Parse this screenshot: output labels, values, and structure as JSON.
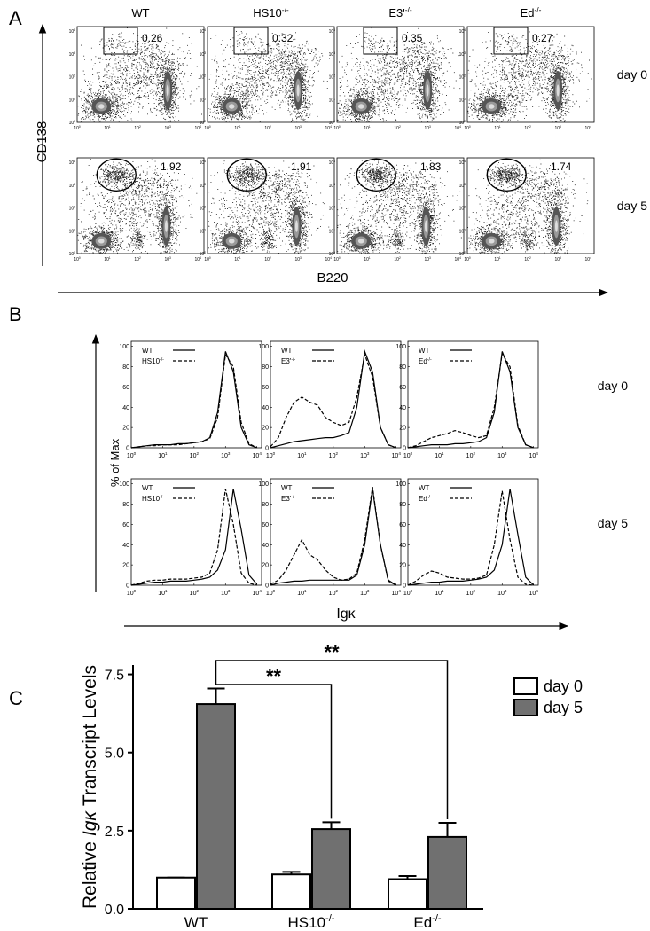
{
  "chart_data": [
    {
      "type": "flow",
      "letter": "A",
      "ylabel": "CD138",
      "xlabel": "B220",
      "columns": [
        {
          "label": "WT"
        },
        {
          "label": "HS10",
          "sup": "-/-"
        },
        {
          "label": "E3'",
          "sup": "-/-"
        },
        {
          "label": "Ed",
          "sup": "-/-"
        }
      ],
      "rows": [
        {
          "label": "day 0",
          "gates": [
            0.26,
            0.32,
            0.35,
            0.27
          ]
        },
        {
          "label": "day 5",
          "gates": [
            1.92,
            1.91,
            1.83,
            1.74
          ]
        }
      ],
      "log_ticks": {
        "base": "10",
        "exponents": [
          0,
          1,
          2,
          3,
          4
        ]
      }
    },
    {
      "type": "line",
      "letter": "B",
      "ylabel": "% of Max",
      "xlabel": "Igκ",
      "ylim": [
        0,
        105
      ],
      "yticks": [
        0,
        20,
        40,
        60,
        80,
        100
      ],
      "xlim": [
        0,
        4.15
      ],
      "log_ticks": {
        "base": "10",
        "exponents": [
          0,
          1,
          2,
          3,
          4
        ]
      },
      "x": [
        0,
        0.25,
        0.5,
        0.75,
        1,
        1.25,
        1.5,
        1.75,
        2,
        2.25,
        2.5,
        2.75,
        3,
        3.25,
        3.5,
        3.75,
        4
      ],
      "rows": [
        {
          "label": "day 0",
          "plots": [
            {
              "series": [
                {
                  "name": "WT",
                  "dash": "solid",
                  "values": [
                    0,
                    1,
                    2,
                    3,
                    3,
                    3,
                    4,
                    4,
                    5,
                    6,
                    10,
                    35,
                    95,
                    75,
                    20,
                    3,
                    0
                  ]
                },
                {
                  "name": "HS10",
                  "sup": "-/-",
                  "dash": "dashed",
                  "values": [
                    0,
                    1,
                    2,
                    2,
                    3,
                    3,
                    3,
                    4,
                    5,
                    6,
                    9,
                    30,
                    92,
                    80,
                    25,
                    4,
                    0
                  ]
                }
              ]
            },
            {
              "series": [
                {
                  "name": "WT",
                  "dash": "solid",
                  "values": [
                    0,
                    2,
                    4,
                    6,
                    7,
                    8,
                    9,
                    10,
                    10,
                    12,
                    15,
                    40,
                    95,
                    75,
                    20,
                    3,
                    0
                  ]
                },
                {
                  "name": "E3'",
                  "sup": "-/-",
                  "dash": "dashed",
                  "values": [
                    1,
                    10,
                    30,
                    45,
                    50,
                    45,
                    42,
                    30,
                    25,
                    22,
                    25,
                    50,
                    92,
                    70,
                    20,
                    3,
                    0
                  ]
                }
              ]
            },
            {
              "series": [
                {
                  "name": "WT",
                  "dash": "solid",
                  "values": [
                    0,
                    1,
                    2,
                    3,
                    3,
                    3,
                    4,
                    4,
                    5,
                    6,
                    10,
                    35,
                    95,
                    75,
                    20,
                    3,
                    0
                  ]
                },
                {
                  "name": "Ed",
                  "sup": "-/-",
                  "dash": "dashed",
                  "values": [
                    0,
                    2,
                    6,
                    10,
                    12,
                    14,
                    17,
                    15,
                    12,
                    10,
                    12,
                    40,
                    93,
                    80,
                    22,
                    3,
                    0
                  ]
                }
              ]
            }
          ]
        },
        {
          "label": "day 5",
          "plots": [
            {
              "series": [
                {
                  "name": "WT",
                  "dash": "solid",
                  "values": [
                    0,
                    1,
                    2,
                    3,
                    3,
                    4,
                    4,
                    4,
                    5,
                    6,
                    8,
                    15,
                    35,
                    95,
                    55,
                    10,
                    1
                  ]
                },
                {
                  "name": "HS10",
                  "sup": "-/-",
                  "dash": "dashed",
                  "values": [
                    0,
                    2,
                    4,
                    5,
                    5,
                    6,
                    6,
                    6,
                    7,
                    8,
                    12,
                    35,
                    95,
                    60,
                    12,
                    2,
                    0
                  ]
                }
              ]
            },
            {
              "series": [
                {
                  "name": "WT",
                  "dash": "solid",
                  "values": [
                    0,
                    2,
                    3,
                    4,
                    4,
                    5,
                    5,
                    5,
                    5,
                    5,
                    5,
                    10,
                    40,
                    95,
                    40,
                    5,
                    0
                  ]
                },
                {
                  "name": "E3'",
                  "sup": "-/-",
                  "dash": "dashed",
                  "values": [
                    1,
                    5,
                    15,
                    30,
                    45,
                    30,
                    25,
                    15,
                    8,
                    5,
                    6,
                    12,
                    45,
                    97,
                    40,
                    4,
                    0
                  ]
                }
              ]
            },
            {
              "series": [
                {
                  "name": "WT",
                  "dash": "solid",
                  "values": [
                    0,
                    1,
                    2,
                    3,
                    3,
                    4,
                    4,
                    4,
                    5,
                    6,
                    8,
                    15,
                    40,
                    95,
                    50,
                    8,
                    0
                  ]
                },
                {
                  "name": "Ed",
                  "sup": "-/-",
                  "dash": "dashed",
                  "values": [
                    0,
                    4,
                    10,
                    14,
                    12,
                    8,
                    7,
                    6,
                    6,
                    7,
                    10,
                    40,
                    93,
                    45,
                    8,
                    1,
                    0
                  ]
                }
              ]
            }
          ]
        }
      ]
    },
    {
      "type": "bar",
      "letter": "C",
      "ylabel": {
        "before": "Relative",
        "italic": "Igκ",
        "after": "Transcript Levels"
      },
      "categories": [
        {
          "label": "WT"
        },
        {
          "label": "HS10",
          "sup": "-/-"
        },
        {
          "label": "Ed",
          "sup": "-/-"
        }
      ],
      "series": [
        {
          "name": "day 0",
          "color": "#ffffff",
          "values": [
            1.0,
            1.1,
            0.95
          ],
          "errors": [
            0,
            0.08,
            0.1
          ]
        },
        {
          "name": "day 5",
          "color": "#707070",
          "values": [
            6.55,
            2.55,
            2.3
          ],
          "errors": [
            0.5,
            0.22,
            0.45
          ]
        }
      ],
      "ylim": [
        0,
        7.8
      ],
      "yticks": [
        {
          "value": 0,
          "label": "0.0"
        },
        {
          "value": 2.5,
          "label": "2.5"
        },
        {
          "value": 5,
          "label": "5.0"
        },
        {
          "value": 7.5,
          "label": "7.5"
        }
      ],
      "annotations": [
        "**",
        "**"
      ]
    }
  ]
}
